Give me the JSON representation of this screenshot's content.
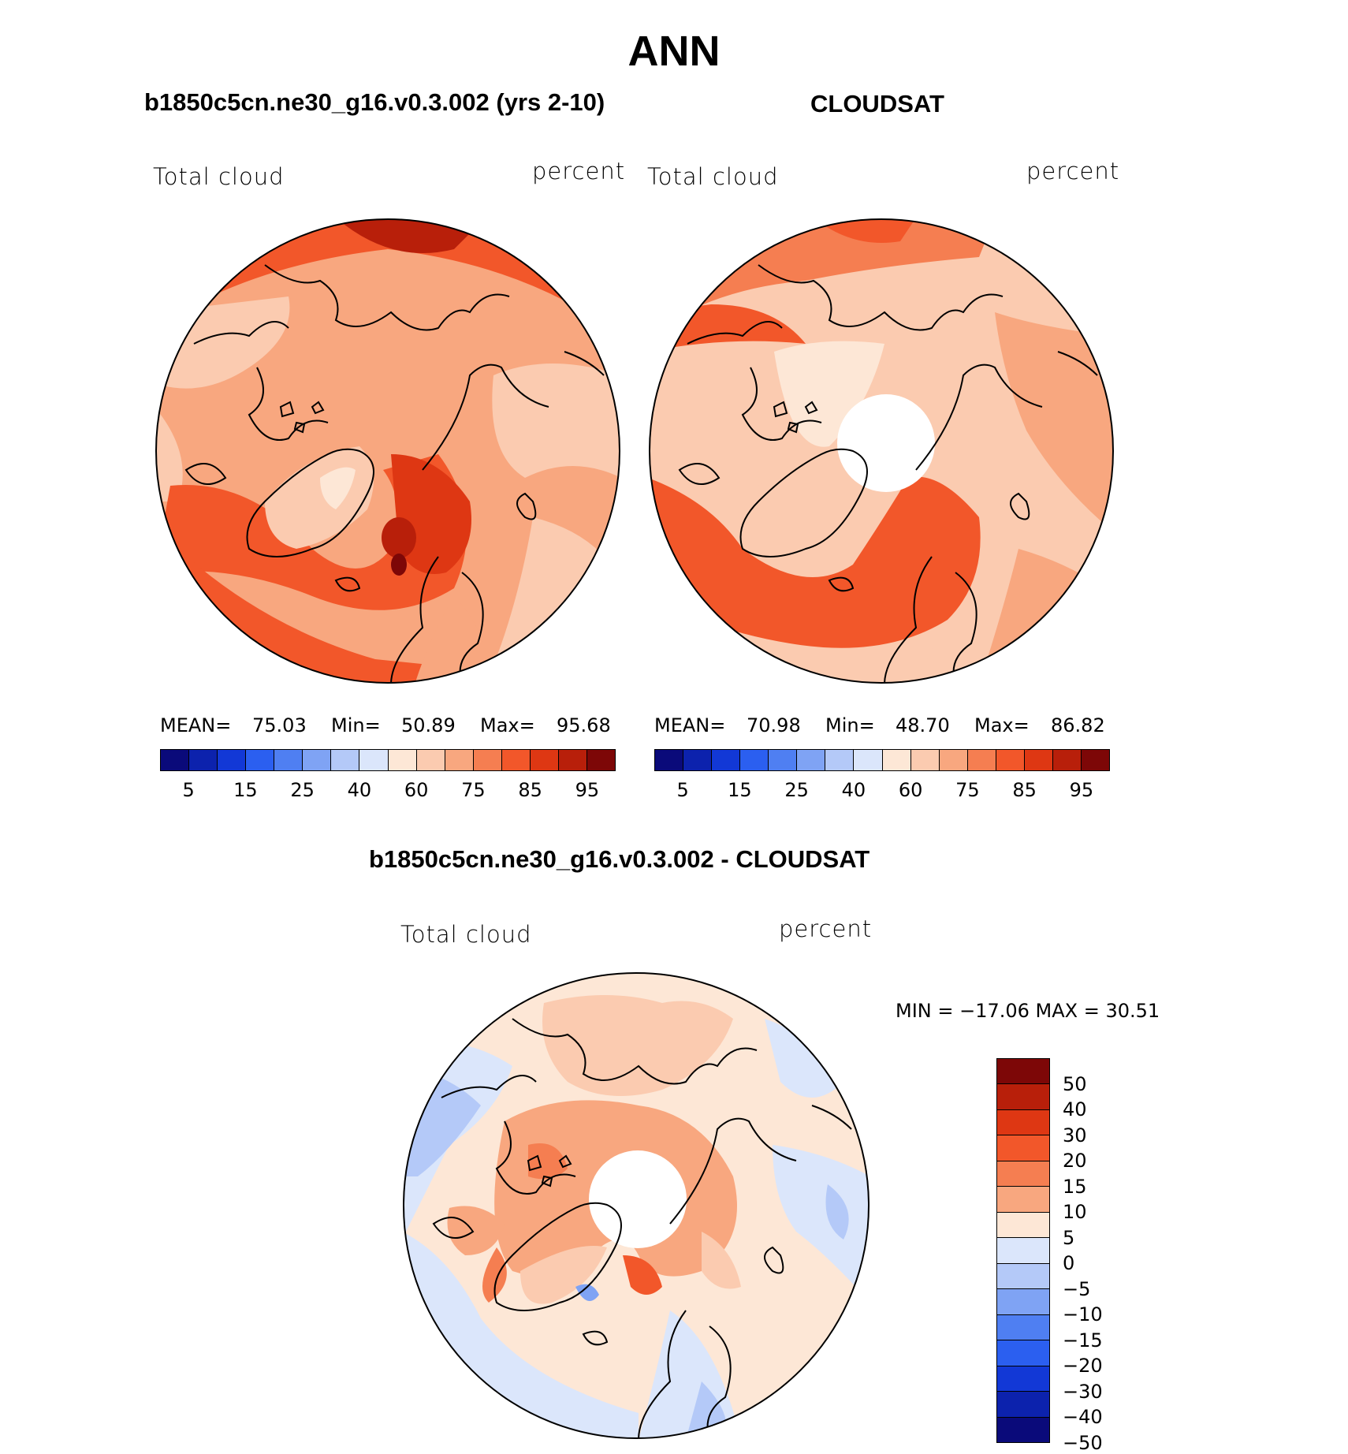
{
  "title": "ANN",
  "panels": [
    {
      "subtitle": "b1850c5cn.ne30_g16.v0.3.002 (yrs 2-10)",
      "left_label": "Total cloud",
      "right_label": "percent",
      "stats": {
        "mean_label": "MEAN=",
        "mean": "75.03",
        "min_label": "Min=",
        "min": "50.89",
        "max_label": "Max=",
        "max": "95.68"
      }
    },
    {
      "subtitle": "CLOUDSAT",
      "left_label": "Total cloud",
      "right_label": "percent",
      "stats": {
        "mean_label": "MEAN=",
        "mean": "70.98",
        "min_label": "Min=",
        "min": "48.70",
        "max_label": "Max=",
        "max": "86.82"
      }
    }
  ],
  "diff": {
    "subtitle": "b1850c5cn.ne30_g16.v0.3.002 - CLOUDSAT",
    "left_label": "Total cloud",
    "right_label": "percent",
    "minmax": "MIN = −17.06 MAX =   30.51"
  },
  "colorbar_abs": {
    "colors": [
      "#0a0a7a",
      "#0c22ad",
      "#1238d6",
      "#2b5ff0",
      "#4f7ff2",
      "#7fa3f4",
      "#b4c9f8",
      "#dbe6fb",
      "#fde7d6",
      "#fbcbb0",
      "#f8a77f",
      "#f57e51",
      "#f2572a",
      "#de3713",
      "#b81f0a",
      "#7d0707"
    ],
    "tick_labels": [
      "5",
      "15",
      "25",
      "40",
      "60",
      "75",
      "85",
      "95"
    ]
  },
  "colorbar_diff": {
    "colors": [
      "#7d0707",
      "#b81f0a",
      "#de3713",
      "#f2572a",
      "#f57e51",
      "#f8a77f",
      "#fde7d6",
      "#dbe6fb",
      "#b4c9f8",
      "#7fa3f4",
      "#4f7ff2",
      "#2b5ff0",
      "#1238d6",
      "#0c22ad",
      "#0a0a7a"
    ],
    "tick_labels": [
      "50",
      "40",
      "30",
      "20",
      "15",
      "10",
      "5",
      "0",
      "−5",
      "−10",
      "−15",
      "−20",
      "−30",
      "−40",
      "−50"
    ]
  },
  "palette": {
    "land_outline": "#000000",
    "map_border": "#000000"
  }
}
